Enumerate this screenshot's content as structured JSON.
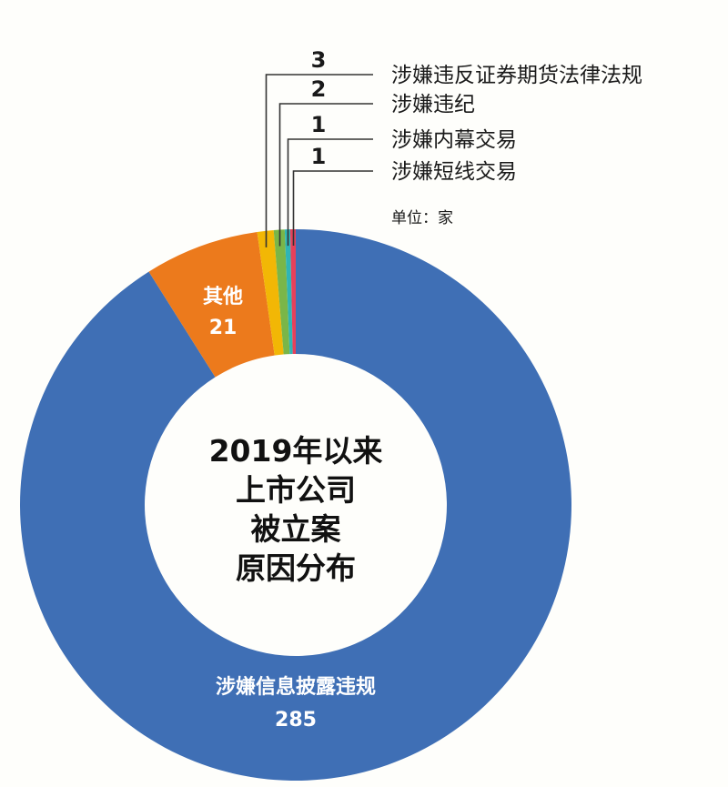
{
  "chart_data": {
    "type": "pie",
    "donut": true,
    "title": [
      "2019年以来",
      "上市公司",
      "被立案",
      "原因分布"
    ],
    "unit": "单位：家",
    "slices": [
      {
        "name": "涉嫌信息披露违规",
        "value": 285,
        "color": "#3f6fb5"
      },
      {
        "name": "其他",
        "value": 21,
        "color": "#ec7a1c"
      },
      {
        "name": "涉嫌违反证券期货法律法规",
        "value": 3,
        "color": "#f2b705"
      },
      {
        "name": "涉嫌违纪",
        "value": 2,
        "color": "#7ab648"
      },
      {
        "name": "涉嫌内幕交易",
        "value": 1,
        "color": "#2fb5b5"
      },
      {
        "name": "涉嫌短线交易",
        "value": 1,
        "color": "#e8405a"
      }
    ],
    "start_angle": "12 o'clock",
    "direction": "clockwise",
    "legend": "top-right"
  }
}
